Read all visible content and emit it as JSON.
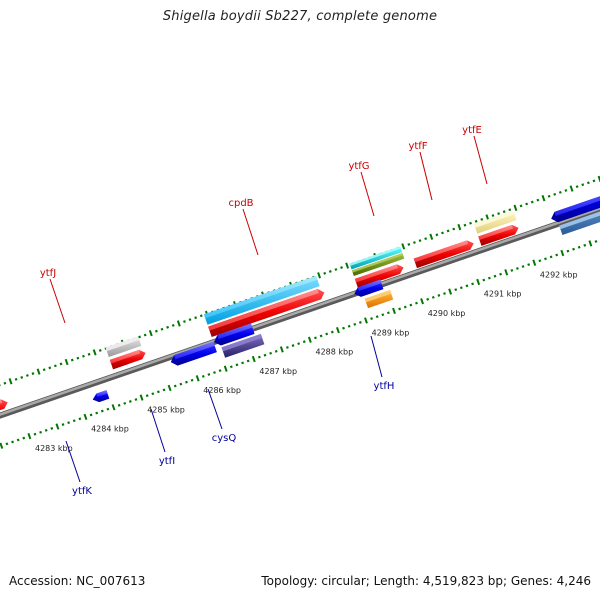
{
  "title": "Shigella boydii Sb227, complete genome",
  "footer": {
    "accession": "Accession: NC_007613",
    "summary": "Topology: circular; Length: 4,519,823 bp; Genes: 4,246"
  },
  "colors": {
    "forward_label": "#cc0000",
    "reverse_label": "#000099",
    "backbone": "#808080",
    "tick_major": "#007700",
    "tick_minor": "#007700"
  },
  "scale": {
    "unit": "kbp",
    "ticks": [
      {
        "kbp": 4283,
        "label": "4283 kbp"
      },
      {
        "kbp": 4284,
        "label": "4284 kbp"
      },
      {
        "kbp": 4285,
        "label": "4285 kbp"
      },
      {
        "kbp": 4286,
        "label": "4286 kbp"
      },
      {
        "kbp": 4287,
        "label": "4287 kbp"
      },
      {
        "kbp": 4288,
        "label": "4288 kbp"
      },
      {
        "kbp": 4289,
        "label": "4289 kbp"
      },
      {
        "kbp": 4290,
        "label": "4290 kbp"
      },
      {
        "kbp": 4291,
        "label": "4291 kbp"
      },
      {
        "kbp": 4292,
        "label": "4292 kbp"
      }
    ]
  },
  "genes": [
    {
      "name": "ytfJ",
      "strand": "+",
      "start_kbp": 4284.2,
      "end_kbp": 4284.9,
      "labeled": true
    },
    {
      "name": "cpdB",
      "strand": "+",
      "start_kbp": 4285.9,
      "end_kbp": 4288.0,
      "labeled": true
    },
    {
      "name": "ytfG",
      "strand": "+",
      "start_kbp": 4288.55,
      "end_kbp": 4289.4,
      "labeled": true
    },
    {
      "name": "ytfF",
      "strand": "+",
      "start_kbp": 4289.6,
      "end_kbp": 4290.55,
      "labeled": true
    },
    {
      "name": "ytfE",
      "strand": "+",
      "start_kbp": 4290.7,
      "end_kbp": 4291.4,
      "labeled": true
    },
    {
      "name": "ytfK",
      "strand": "-",
      "start_kbp": 4283.8,
      "end_kbp": 4283.95,
      "labeled": true
    },
    {
      "name": "ytfI",
      "strand": "-",
      "start_kbp": 4284.65,
      "end_kbp": 4285.3,
      "labeled": true
    },
    {
      "name": "cysQ",
      "strand": "-",
      "start_kbp": 4285.4,
      "end_kbp": 4285.9,
      "labeled": true
    },
    {
      "name": "ytfH",
      "strand": "-",
      "start_kbp": 4288.6,
      "end_kbp": 4288.95,
      "labeled": true
    }
  ]
}
